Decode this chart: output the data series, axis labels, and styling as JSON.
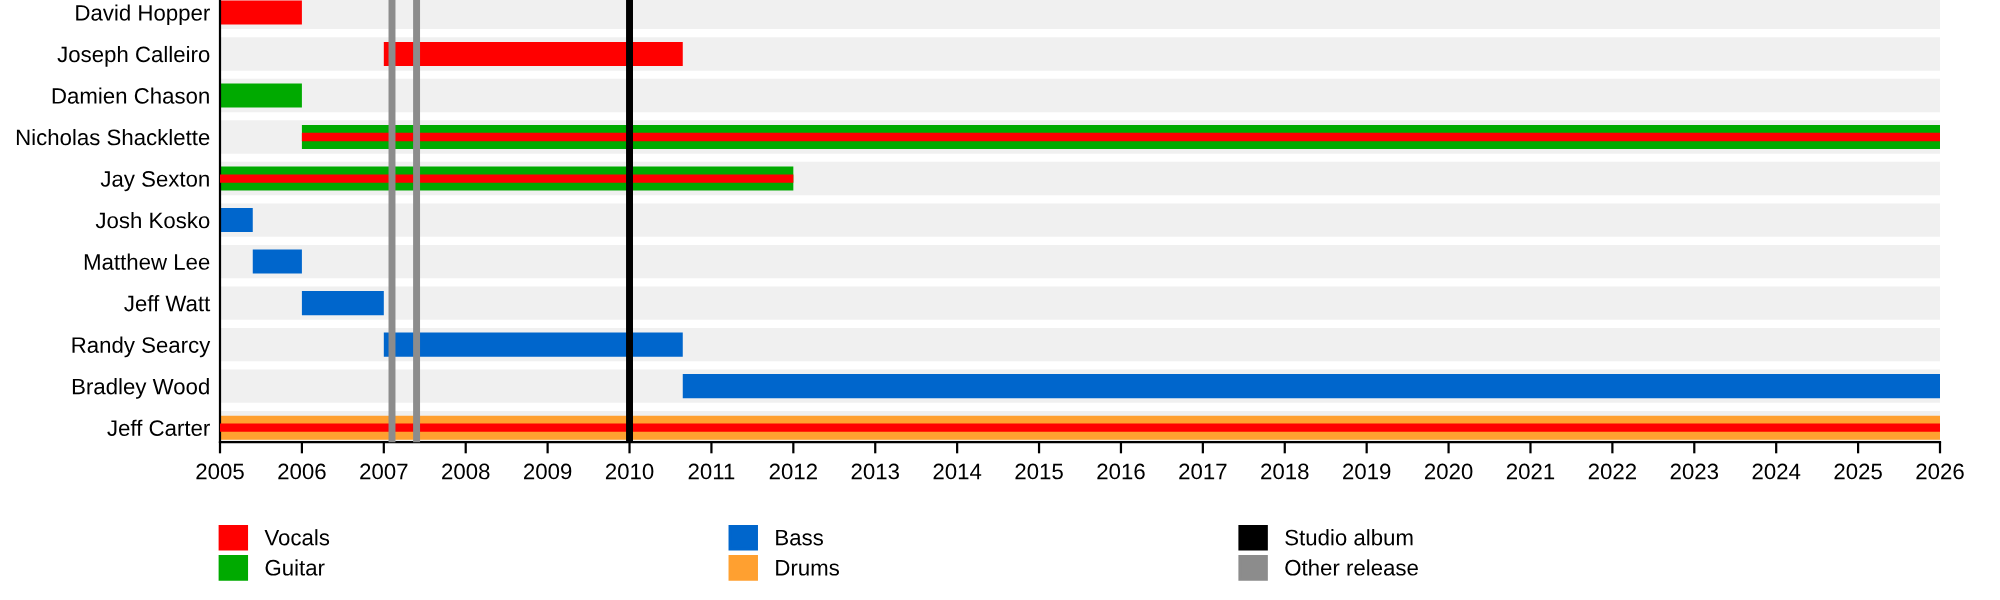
{
  "chart_data": {
    "type": "bar",
    "orientation": "horizontal",
    "categories": [
      "David Hopper",
      "Joseph Calleiro",
      "Damien Chason",
      "Nicholas Shacklette",
      "Jay Sexton",
      "Josh Kosko",
      "Matthew Lee",
      "Jeff Watt",
      "Randy Searcy",
      "Bradley Wood",
      "Jeff Carter"
    ],
    "series": [
      {
        "name": "Vocals",
        "color": "#ff0000",
        "base": [
          2005,
          2007,
          null,
          2006,
          2005,
          null,
          null,
          null,
          null,
          null,
          2005
        ],
        "values": [
          1,
          3.65,
          null,
          20,
          7,
          null,
          null,
          null,
          null,
          null,
          21
        ]
      },
      {
        "name": "Guitar",
        "color": "#00aa00",
        "base": [
          null,
          null,
          2005,
          2006,
          2005,
          null,
          null,
          null,
          null,
          null,
          null
        ],
        "values": [
          null,
          null,
          1,
          20,
          7,
          null,
          null,
          null,
          null,
          null,
          null
        ]
      },
      {
        "name": "Bass",
        "color": "#0066cc",
        "base": [
          null,
          null,
          null,
          null,
          null,
          2005,
          2005.4,
          2006,
          2007,
          2010.65,
          null
        ],
        "values": [
          null,
          null,
          null,
          null,
          null,
          0.4,
          0.6,
          1,
          3.65,
          15.35,
          null
        ]
      },
      {
        "name": "Drums",
        "color": "#ffa030",
        "base": [
          null,
          null,
          null,
          null,
          null,
          null,
          null,
          null,
          null,
          null,
          2005
        ],
        "values": [
          null,
          null,
          null,
          null,
          null,
          null,
          null,
          null,
          null,
          null,
          21
        ]
      }
    ],
    "ref_lines": [
      {
        "axis": "x",
        "value": 2010,
        "label": "Studio album",
        "color": "#000000"
      },
      {
        "axis": "x",
        "value": 2007.1,
        "label": "Other release",
        "color": "#8c8c8c"
      },
      {
        "axis": "x",
        "value": 2007.4,
        "color": "#8c8c8c"
      }
    ],
    "xlim": [
      2005,
      2026
    ],
    "xticks": [
      2005,
      2006,
      2007,
      2008,
      2009,
      2010,
      2011,
      2012,
      2013,
      2014,
      2015,
      2016,
      2017,
      2018,
      2019,
      2020,
      2021,
      2022,
      2023,
      2024,
      2025,
      2026
    ],
    "grid": "y",
    "legend": "bottom"
  }
}
